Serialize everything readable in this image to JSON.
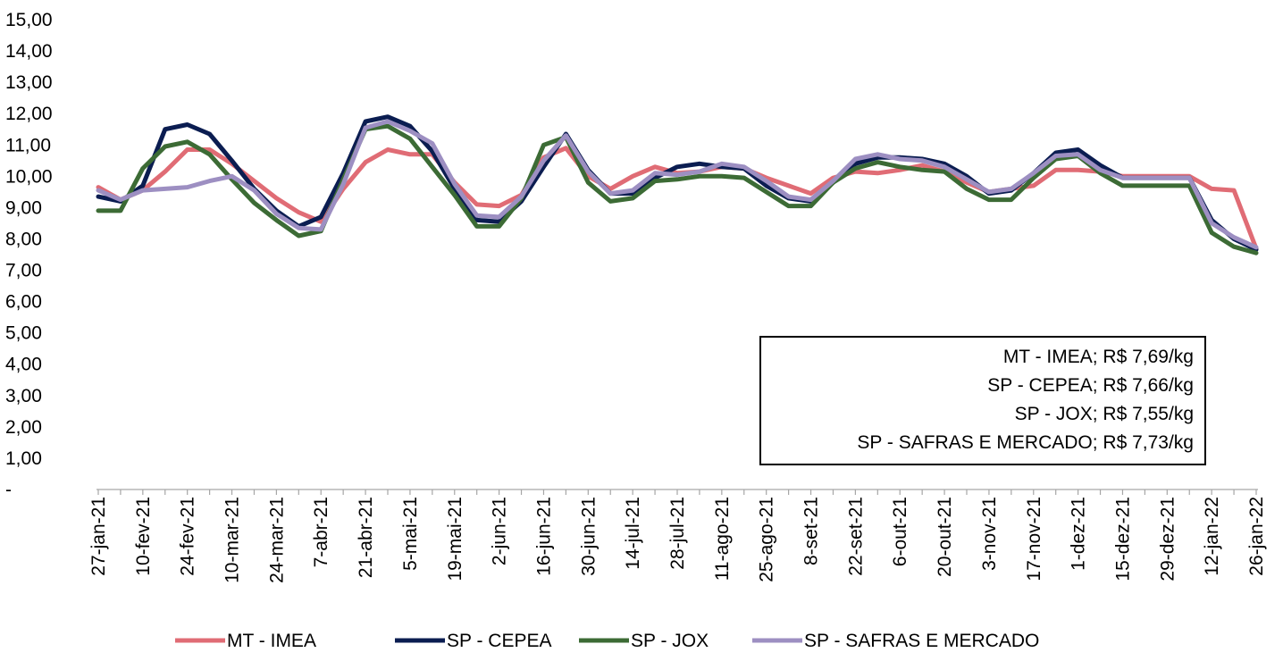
{
  "chart_data": {
    "type": "line",
    "title": "",
    "xlabel": "",
    "ylabel": "",
    "ylim": [
      0,
      15
    ],
    "y_ticks": [
      "-",
      "1,00",
      "2,00",
      "3,00",
      "4,00",
      "5,00",
      "6,00",
      "7,00",
      "8,00",
      "9,00",
      "10,00",
      "11,00",
      "12,00",
      "13,00",
      "14,00",
      "15,00"
    ],
    "x_tick_labels": [
      "27-jan-21",
      "10-fev-21",
      "24-fev-21",
      "10-mar-21",
      "24-mar-21",
      "7-abr-21",
      "21-abr-21",
      "5-mai-21",
      "19-mai-21",
      "2-jun-21",
      "16-jun-21",
      "30-jun-21",
      "14-jul-21",
      "28-jul-21",
      "11-ago-21",
      "25-ago-21",
      "8-set-21",
      "22-set-21",
      "6-out-21",
      "20-out-21",
      "3-nov-21",
      "17-nov-21",
      "1-dez-21",
      "15-dez-21",
      "29-dez-21",
      "12-jan-22",
      "26-jan-22"
    ],
    "x": [
      "27-jan-21",
      "3-fev-21",
      "10-fev-21",
      "17-fev-21",
      "24-fev-21",
      "3-mar-21",
      "10-mar-21",
      "17-mar-21",
      "24-mar-21",
      "31-mar-21",
      "7-abr-21",
      "14-abr-21",
      "21-abr-21",
      "28-abr-21",
      "5-mai-21",
      "12-mai-21",
      "19-mai-21",
      "26-mai-21",
      "2-jun-21",
      "9-jun-21",
      "16-jun-21",
      "23-jun-21",
      "30-jun-21",
      "7-jul-21",
      "14-jul-21",
      "21-jul-21",
      "28-jul-21",
      "4-ago-21",
      "11-ago-21",
      "18-ago-21",
      "25-ago-21",
      "1-set-21",
      "8-set-21",
      "15-set-21",
      "22-set-21",
      "29-set-21",
      "6-out-21",
      "13-out-21",
      "20-out-21",
      "27-out-21",
      "3-nov-21",
      "10-nov-21",
      "17-nov-21",
      "24-nov-21",
      "1-dez-21",
      "8-dez-21",
      "15-dez-21",
      "22-dez-21",
      "29-dez-21",
      "5-jan-22",
      "12-jan-22",
      "19-jan-22",
      "26-jan-22"
    ],
    "series": [
      {
        "name": "MT - IMEA",
        "color": "#e06c75",
        "values": [
          9.65,
          9.25,
          9.55,
          10.15,
          10.85,
          10.85,
          10.4,
          9.85,
          9.3,
          8.85,
          8.55,
          9.6,
          10.45,
          10.85,
          10.7,
          10.7,
          9.8,
          9.1,
          9.05,
          9.4,
          10.6,
          10.9,
          10.0,
          9.6,
          10.0,
          10.3,
          10.1,
          10.15,
          10.3,
          10.25,
          9.95,
          9.7,
          9.45,
          9.95,
          10.15,
          10.1,
          10.2,
          10.35,
          10.15,
          9.8,
          9.5,
          9.6,
          9.7,
          10.2,
          10.2,
          10.15,
          10.0,
          10.0,
          10.0,
          10.0,
          9.6,
          9.55,
          7.69
        ]
      },
      {
        "name": "SP - CEPEA",
        "color": "#0b1d51",
        "values": [
          9.35,
          9.2,
          9.7,
          11.5,
          11.65,
          11.35,
          10.5,
          9.6,
          8.9,
          8.4,
          8.7,
          10.1,
          11.75,
          11.9,
          11.6,
          10.8,
          9.6,
          8.6,
          8.55,
          9.2,
          10.3,
          11.35,
          10.2,
          9.45,
          9.45,
          9.95,
          10.3,
          10.4,
          10.3,
          10.25,
          9.7,
          9.3,
          9.2,
          9.8,
          10.4,
          10.6,
          10.6,
          10.55,
          10.4,
          10.0,
          9.45,
          9.55,
          10.1,
          10.75,
          10.85,
          10.35,
          9.95,
          9.95,
          9.95,
          9.95,
          8.6,
          8.0,
          7.66
        ]
      },
      {
        "name": "SP - JOX",
        "color": "#3c6b35",
        "values": [
          8.9,
          8.9,
          10.25,
          10.95,
          11.1,
          10.7,
          9.9,
          9.15,
          8.6,
          8.1,
          8.25,
          9.9,
          11.5,
          11.6,
          11.2,
          10.3,
          9.4,
          8.4,
          8.4,
          9.3,
          11.0,
          11.25,
          9.8,
          9.2,
          9.3,
          9.85,
          9.9,
          10.0,
          10.0,
          9.95,
          9.5,
          9.05,
          9.05,
          9.8,
          10.25,
          10.45,
          10.3,
          10.2,
          10.15,
          9.6,
          9.25,
          9.25,
          9.95,
          10.55,
          10.65,
          10.1,
          9.7,
          9.7,
          9.7,
          9.7,
          8.2,
          7.75,
          7.55
        ]
      },
      {
        "name": "SP - SAFRAS E MERCADO",
        "color": "#9d8fc2",
        "values": [
          9.55,
          9.25,
          9.55,
          9.6,
          9.65,
          9.85,
          10.0,
          9.55,
          8.8,
          8.35,
          8.3,
          9.75,
          11.55,
          11.75,
          11.45,
          11.05,
          9.75,
          8.75,
          8.7,
          9.35,
          10.5,
          11.3,
          10.15,
          9.45,
          9.55,
          10.1,
          10.05,
          10.15,
          10.4,
          10.3,
          9.85,
          9.35,
          9.25,
          9.85,
          10.55,
          10.7,
          10.55,
          10.5,
          10.3,
          9.9,
          9.5,
          9.6,
          10.1,
          10.65,
          10.7,
          10.2,
          9.95,
          9.95,
          9.95,
          9.95,
          8.5,
          8.05,
          7.73
        ]
      }
    ],
    "annotation_lines": [
      "MT - IMEA; R$ 7,69/kg",
      "SP - CEPEA; R$ 7,66/kg",
      "SP - JOX; R$ 7,55/kg",
      "SP - SAFRAS E MERCADO; R$ 7,73/kg"
    ],
    "legend_position": "bottom",
    "grid": false
  }
}
